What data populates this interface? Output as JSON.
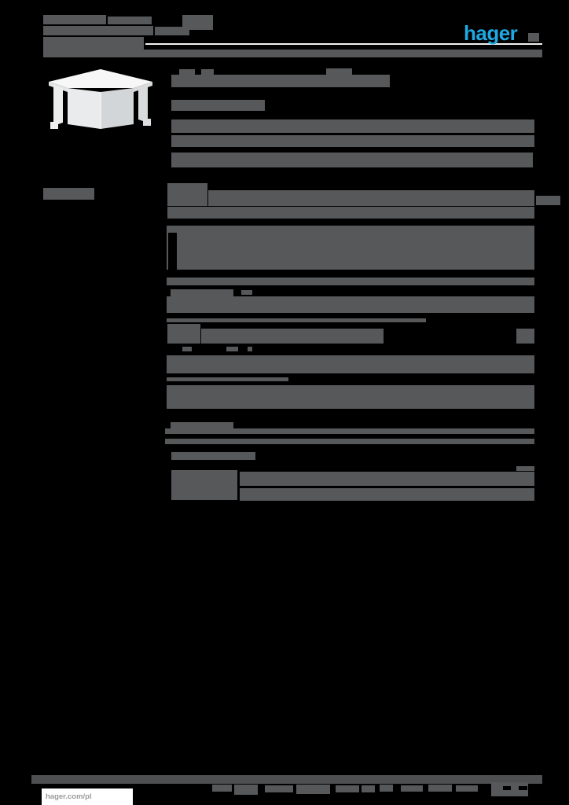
{
  "logo": {
    "text": "hager"
  },
  "footer": {
    "website": "hager.com/pl"
  },
  "colors": {
    "bg": "#000000",
    "ink": "#56585a",
    "ink-footer": "#4d4f51",
    "logo-blue": "#1fa8e1",
    "rule": "#f2f2f2",
    "box": "#ffffff",
    "website-text": "#9b9b9b"
  },
  "bars": {
    "header": [
      [
        55,
        19,
        80,
        12
      ],
      [
        137,
        21,
        56,
        10
      ],
      [
        232,
        19,
        39,
        19
      ],
      [
        55,
        33,
        140,
        12
      ],
      [
        197,
        34,
        44,
        11
      ],
      [
        55,
        47,
        128,
        16
      ]
    ],
    "title": [
      [
        228,
        88,
        20,
        8
      ],
      [
        256,
        88,
        16,
        8
      ],
      [
        415,
        87,
        33,
        9
      ],
      [
        218,
        95,
        278,
        16
      ],
      [
        218,
        127,
        119,
        14
      ]
    ],
    "description": [
      [
        218,
        152,
        462,
        17
      ],
      [
        218,
        172,
        462,
        15
      ],
      [
        218,
        194,
        460,
        19
      ]
    ],
    "table": [
      [
        55,
        239,
        65,
        15
      ],
      [
        213,
        233,
        51,
        29
      ],
      [
        265,
        242,
        415,
        20
      ],
      [
        682,
        249,
        31,
        12
      ],
      [
        213,
        263,
        467,
        15
      ],
      [
        212,
        287,
        468,
        56
      ],
      [
        214,
        296,
        11,
        47,
        "#000000"
      ],
      [
        212,
        353,
        468,
        10
      ],
      [
        217,
        368,
        80,
        10
      ],
      [
        307,
        369,
        14,
        6
      ],
      [
        212,
        377,
        468,
        21
      ],
      [
        212,
        405,
        330,
        5
      ],
      [
        213,
        412,
        42,
        25
      ],
      [
        256,
        418,
        232,
        19
      ],
      [
        657,
        418,
        23,
        19
      ],
      [
        232,
        441,
        12,
        6
      ],
      [
        288,
        441,
        15,
        6
      ],
      [
        315,
        441,
        6,
        6
      ],
      [
        212,
        452,
        468,
        23
      ],
      [
        212,
        480,
        155,
        5
      ],
      [
        212,
        490,
        468,
        30
      ],
      [
        217,
        537,
        80,
        8
      ],
      [
        210,
        545,
        470,
        7
      ],
      [
        210,
        558,
        470,
        7
      ],
      [
        218,
        575,
        107,
        10
      ],
      [
        318,
        581,
        6,
        4
      ],
      [
        657,
        593,
        23,
        6
      ],
      [
        218,
        598,
        84,
        38
      ],
      [
        305,
        600,
        375,
        18
      ],
      [
        305,
        621,
        375,
        16
      ]
    ],
    "footer": [
      [
        40,
        986,
        650,
        11,
        "#4d4f51"
      ],
      [
        625,
        995,
        47,
        18
      ],
      [
        640,
        1000,
        10,
        5,
        "#000000"
      ],
      [
        660,
        1000,
        11,
        5,
        "#000000"
      ],
      [
        270,
        998,
        25,
        9
      ],
      [
        298,
        998,
        30,
        13
      ],
      [
        337,
        999,
        36,
        9
      ],
      [
        377,
        998,
        43,
        12
      ],
      [
        427,
        999,
        30,
        9
      ],
      [
        460,
        999,
        17,
        9
      ],
      [
        483,
        998,
        17,
        9
      ],
      [
        510,
        999,
        28,
        8
      ],
      [
        545,
        998,
        30,
        9
      ],
      [
        580,
        999,
        28,
        8
      ]
    ]
  }
}
